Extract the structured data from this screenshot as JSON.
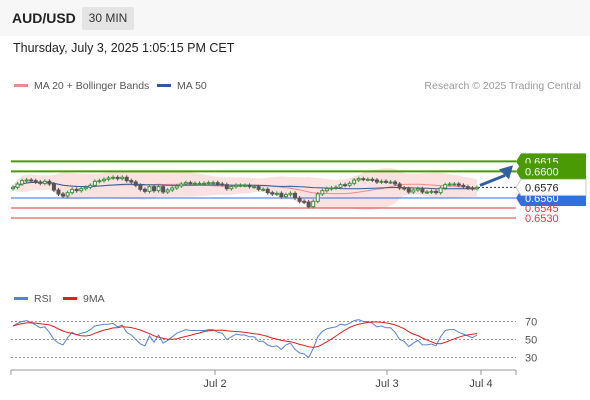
{
  "header": {
    "pair": "AUD/USD",
    "timeframe": "30 MIN"
  },
  "timestamp": "Thursday, July 3, 2025 1:05:15 PM CET",
  "legend": {
    "ma20_label": "MA 20 + Bollinger Bands",
    "ma50_label": "MA 50",
    "copyright": "Research © 2025 Trading Central"
  },
  "rsi_legend": {
    "rsi_label": "RSI",
    "ma_label": "9MA"
  },
  "colors": {
    "green": "#4a9a06",
    "blue": "#2f6fe0",
    "red": "#e03a3a",
    "band": "#fbd9d9",
    "ma20": "#f08a8a",
    "ma50": "#2c5aa0",
    "arrow": "#2f5f9e",
    "bull": "#3d8f3d",
    "bear": "#555555",
    "rsi": "#5a82d4",
    "rsi_ma": "#e02020"
  },
  "chart_data": [
    {
      "type": "candlestick",
      "title": "AUD/USD 30 MIN",
      "x_ticks": [
        "Jul 2",
        "Jul 3",
        "Jul 4"
      ],
      "price_range": [
        0.652,
        0.6625
      ],
      "levels": [
        {
          "value": 0.6615,
          "label": "0.6615",
          "kind": "resistance"
        },
        {
          "value": 0.66,
          "label": "0.6600",
          "kind": "resistance"
        },
        {
          "value": 0.656,
          "label": "0.6560",
          "kind": "pivot"
        },
        {
          "value": 0.6545,
          "label": "0.6545",
          "kind": "support"
        },
        {
          "value": 0.653,
          "label": "0.6530",
          "kind": "support"
        }
      ],
      "last_price": {
        "value": 0.6576,
        "label": "0.6576"
      },
      "close": [
        0.6576,
        0.6581,
        0.6586,
        0.6587,
        0.6586,
        0.6584,
        0.6582,
        0.6585,
        0.6581,
        0.6572,
        0.6566,
        0.6563,
        0.6568,
        0.6573,
        0.6571,
        0.6574,
        0.6576,
        0.6579,
        0.6585,
        0.6586,
        0.6588,
        0.659,
        0.6591,
        0.6589,
        0.6591,
        0.6586,
        0.6584,
        0.6579,
        0.6573,
        0.657,
        0.6577,
        0.6571,
        0.6577,
        0.6569,
        0.6572,
        0.6575,
        0.6578,
        0.6581,
        0.6583,
        0.6582,
        0.6582,
        0.6582,
        0.6582,
        0.6583,
        0.6583,
        0.6581,
        0.658,
        0.6574,
        0.6577,
        0.6579,
        0.6579,
        0.6579,
        0.6577,
        0.6577,
        0.6573,
        0.6573,
        0.6568,
        0.6566,
        0.6567,
        0.6562,
        0.6565,
        0.6567,
        0.656,
        0.6555,
        0.6554,
        0.6547,
        0.6555,
        0.6566,
        0.6571,
        0.6574,
        0.6575,
        0.6576,
        0.658,
        0.6579,
        0.6582,
        0.6587,
        0.6589,
        0.6588,
        0.6588,
        0.6587,
        0.6584,
        0.6585,
        0.6584,
        0.6584,
        0.6581,
        0.6575,
        0.6574,
        0.6569,
        0.6572,
        0.6574,
        0.6569,
        0.6569,
        0.657,
        0.6568,
        0.6575,
        0.658,
        0.6581,
        0.6581,
        0.6579,
        0.6577,
        0.6575,
        0.6574,
        0.6576
      ],
      "series": [
        {
          "name": "MA 20",
          "kind": "moving average with Bollinger Bands"
        },
        {
          "name": "MA 50",
          "kind": "moving average"
        }
      ]
    },
    {
      "type": "line",
      "title": "RSI",
      "y_ticks": [
        70,
        50,
        30
      ],
      "ylim": [
        20,
        80
      ],
      "series": [
        {
          "name": "RSI",
          "values": [
            65,
            68,
            70,
            71,
            69,
            66,
            63,
            64,
            58,
            50,
            46,
            44,
            52,
            58,
            55,
            57,
            58,
            61,
            65,
            66,
            67,
            67,
            68,
            64,
            66,
            58,
            55,
            50,
            45,
            43,
            54,
            47,
            55,
            46,
            49,
            53,
            57,
            59,
            61,
            60,
            60,
            60,
            60,
            61,
            61,
            58,
            57,
            50,
            53,
            56,
            55,
            55,
            53,
            53,
            48,
            48,
            44,
            42,
            43,
            39,
            44,
            46,
            39,
            35,
            34,
            30,
            40,
            53,
            59,
            62,
            63,
            64,
            67,
            66,
            68,
            71,
            72,
            70,
            70,
            68,
            64,
            65,
            63,
            63,
            58,
            50,
            48,
            42,
            46,
            49,
            44,
            44,
            45,
            43,
            53,
            60,
            61,
            61,
            58,
            56,
            54,
            52,
            55
          ]
        },
        {
          "name": "9MA",
          "values": [
            65,
            66.5,
            67.7,
            68.5,
            68.6,
            68.2,
            67.4,
            67,
            66.2,
            64.3,
            61.7,
            59.4,
            57.8,
            56.8,
            55.5,
            54.1,
            53.9,
            54.7,
            57,
            58.8,
            60.4,
            61.6,
            62.9,
            63,
            64.3,
            63.8,
            63.2,
            62,
            60.5,
            58.4,
            56.4,
            54.1,
            52.6,
            51.2,
            50.2,
            50.3,
            50.7,
            52.2,
            53.4,
            54.6,
            56.1,
            57.2,
            58.9,
            59.7,
            60.1,
            60.3,
            60.4,
            59.7,
            59.2,
            58.9,
            58.4,
            57.9,
            57.2,
            56.4,
            55.8,
            54.8,
            53.2,
            51.5,
            50.4,
            49,
            48.2,
            47.6,
            46.2,
            44.6,
            43.5,
            41.9,
            41.2,
            42.1,
            44.5,
            47.4,
            50.5,
            53.9,
            57.3,
            60.4,
            63.3,
            65.5,
            67,
            68.1,
            69,
            69.5,
            69.4,
            69.1,
            68.4,
            67.4,
            66.2,
            64.1,
            62,
            58.6,
            56,
            54.3,
            51.7,
            49.3,
            47.4,
            45.5,
            45.3,
            46.8,
            48.9,
            50.7,
            52.6,
            54.1,
            55.1,
            55.8,
            56.7
          ]
        }
      ]
    }
  ]
}
